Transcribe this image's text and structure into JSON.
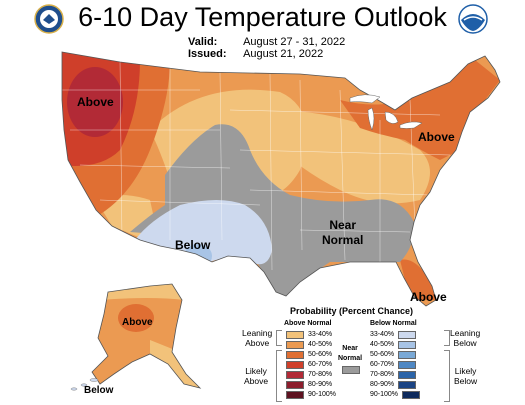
{
  "title": "6-10 Day Temperature Outlook",
  "valid_label": "Valid:",
  "valid_dates": "August 27 - 31, 2022",
  "issued_label": "Issued:",
  "issued_date": "August 21, 2022",
  "logos": {
    "left": "doc-seal-icon",
    "right": "noaa-logo-icon"
  },
  "regions": {
    "northwest": "Above",
    "northeast": "Above",
    "southwest": "Below",
    "central": "Near\nNormal",
    "florida": "Above",
    "alaska": "Above",
    "alaska_south": "Below"
  },
  "legend": {
    "title": "Probability (Percent Chance)",
    "above_header": "Above Normal",
    "below_header": "Below Normal",
    "near_label": "Near\nNormal",
    "leaning_above": "Leaning\nAbove",
    "likely_above": "Likely\nAbove",
    "leaning_below": "Leaning\nBelow",
    "likely_below": "Likely\nBelow",
    "above_bins": [
      {
        "label": "33-40%",
        "color": "#f2c27a"
      },
      {
        "label": "40-50%",
        "color": "#eb9a52"
      },
      {
        "label": "50-60%",
        "color": "#e06f33"
      },
      {
        "label": "60-70%",
        "color": "#cf3f2a"
      },
      {
        "label": "70-80%",
        "color": "#b22a36"
      },
      {
        "label": "80-90%",
        "color": "#8c1d2c"
      },
      {
        "label": "90-100%",
        "color": "#5e1220"
      }
    ],
    "below_bins": [
      {
        "label": "33-40%",
        "color": "#cdd9ee"
      },
      {
        "label": "40-50%",
        "color": "#a8c4e6"
      },
      {
        "label": "50-60%",
        "color": "#7aa9d6"
      },
      {
        "label": "60-70%",
        "color": "#4f88c4"
      },
      {
        "label": "70-80%",
        "color": "#2b64a8"
      },
      {
        "label": "80-90%",
        "color": "#1b4484"
      },
      {
        "label": "90-100%",
        "color": "#0e2a5c"
      }
    ],
    "near_color": "#9b9b9b"
  }
}
